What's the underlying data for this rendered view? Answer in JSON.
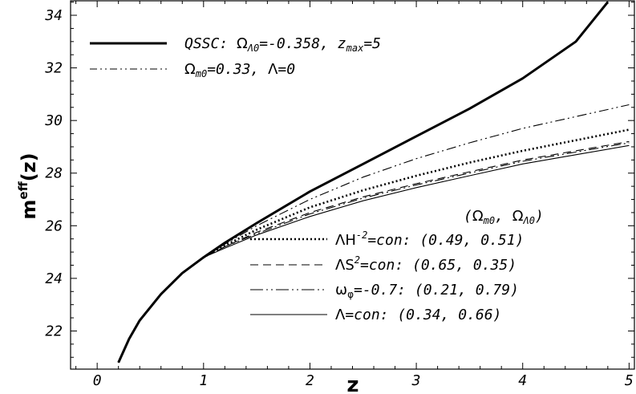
{
  "chart_data": {
    "type": "line",
    "xlabel": "z",
    "ylabel": "m",
    "ylabel_superscript": "eff",
    "ylabel_suffix": "(z)",
    "xlim": [
      -0.25,
      5.05
    ],
    "ylim": [
      20.55,
      34.55
    ],
    "xticks": [
      0,
      1,
      2,
      3,
      4,
      5
    ],
    "yticks": [
      22,
      24,
      26,
      28,
      30,
      32,
      34
    ],
    "grid": false,
    "legend_header": "(Ω_m0, Ω_Λ0)",
    "series": [
      {
        "name": "QSSC: Ω_Λ0=-0.358, z_max=5",
        "style": "thick-solid",
        "x": [
          0.2,
          0.3,
          0.4,
          0.6,
          0.8,
          1.0,
          1.2,
          1.5,
          2.0,
          2.5,
          3.0,
          3.5,
          4.0,
          4.5,
          4.8
        ],
        "y": [
          20.8,
          21.7,
          22.4,
          23.4,
          24.2,
          24.8,
          25.35,
          26.1,
          27.3,
          28.35,
          29.4,
          30.45,
          31.6,
          33.0,
          34.5
        ]
      },
      {
        "name": "Ω_m0=0.33, Λ=0",
        "style": "dash-dot-dot",
        "x": [
          0.2,
          0.3,
          0.4,
          0.6,
          0.8,
          1.0,
          1.2,
          1.5,
          2.0,
          2.5,
          3.0,
          3.5,
          4.0,
          4.5,
          5.0
        ],
        "y": [
          20.8,
          21.7,
          22.4,
          23.4,
          24.2,
          24.8,
          25.3,
          26.0,
          27.0,
          27.85,
          28.55,
          29.15,
          29.7,
          30.15,
          30.6
        ]
      },
      {
        "name": "ΛH^-2=con: (0.49, 0.51)",
        "style": "dotted",
        "x": [
          0.2,
          0.3,
          0.4,
          0.6,
          0.8,
          1.0,
          1.2,
          1.5,
          2.0,
          2.5,
          3.0,
          3.5,
          4.0,
          4.5,
          5.0
        ],
        "y": [
          20.8,
          21.7,
          22.4,
          23.4,
          24.2,
          24.8,
          25.25,
          25.85,
          26.7,
          27.35,
          27.9,
          28.4,
          28.85,
          29.25,
          29.65
        ]
      },
      {
        "name": "ΛS^2=con: (0.65, 0.35)",
        "style": "dashed",
        "x": [
          0.2,
          0.3,
          0.4,
          0.6,
          0.8,
          1.0,
          1.2,
          1.5,
          2.0,
          2.5,
          3.0,
          3.5,
          4.0,
          4.5,
          5.0
        ],
        "y": [
          20.8,
          21.7,
          22.4,
          23.4,
          24.2,
          24.8,
          25.2,
          25.75,
          26.5,
          27.1,
          27.6,
          28.05,
          28.5,
          28.85,
          29.2
        ]
      },
      {
        "name": "ω_φ=-0.7: (0.21, 0.79)",
        "style": "dash-dot-dot",
        "x": [
          0.2,
          0.3,
          0.4,
          0.6,
          0.8,
          1.0,
          1.2,
          1.5,
          2.0,
          2.5,
          3.0,
          3.5,
          4.0,
          4.5,
          5.0
        ],
        "y": [
          20.8,
          21.7,
          22.4,
          23.4,
          24.2,
          24.8,
          25.2,
          25.7,
          26.45,
          27.05,
          27.55,
          28.0,
          28.45,
          28.8,
          29.15
        ]
      },
      {
        "name": "Λ=con: (0.34, 0.66)",
        "style": "thin-solid",
        "x": [
          0.2,
          0.3,
          0.4,
          0.6,
          0.8,
          1.0,
          1.2,
          1.5,
          2.0,
          2.5,
          3.0,
          3.5,
          4.0,
          4.5,
          5.0
        ],
        "y": [
          20.8,
          21.7,
          22.4,
          23.4,
          24.2,
          24.8,
          25.15,
          25.65,
          26.35,
          26.95,
          27.45,
          27.9,
          28.35,
          28.7,
          29.05
        ]
      }
    ]
  }
}
